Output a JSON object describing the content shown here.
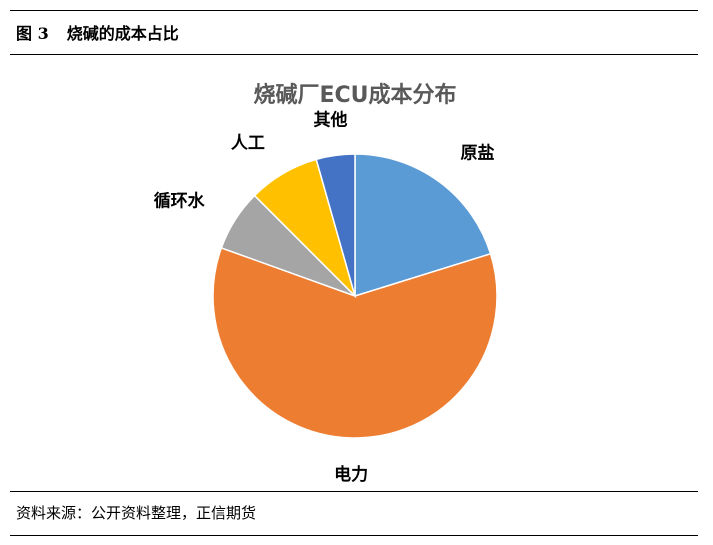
{
  "figure": {
    "number": "图 3",
    "caption": "烧碱的成本占比",
    "source": "资料来源：公开资料整理，正信期货"
  },
  "chart_data": {
    "type": "pie",
    "title": "烧碱厂ECU成本分布",
    "start_angle_deg": 0,
    "direction": "clockwise",
    "legend": "none",
    "slices": [
      {
        "label": "原盐",
        "value": 20.2,
        "color": "#5B9BD5"
      },
      {
        "label": "电力",
        "value": 60.3,
        "color": "#ED7D31"
      },
      {
        "label": "循环水",
        "value": 7.0,
        "color": "#A5A5A5"
      },
      {
        "label": "人工",
        "value": 8.1,
        "color": "#FFC000"
      },
      {
        "label": "其他",
        "value": 4.4,
        "color": "#4472C4"
      }
    ]
  }
}
